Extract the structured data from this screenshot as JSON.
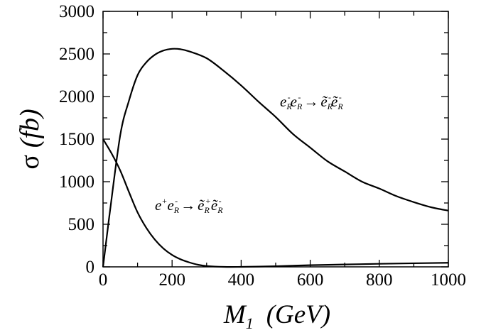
{
  "chart_data": {
    "type": "line",
    "xlabel": "M_1 (GeV)",
    "ylabel": "σ (fb)",
    "xlim": [
      0,
      1000
    ],
    "ylim": [
      0,
      3000
    ],
    "grid": false,
    "x_ticks": [
      0,
      200,
      400,
      600,
      800,
      1000
    ],
    "y_ticks": [
      0,
      500,
      1000,
      1500,
      2000,
      2500,
      3000
    ],
    "series": [
      {
        "name": "e⁻_R e⁻_R → ẽ⁻_R ẽ⁻_R",
        "x": [
          0,
          20,
          50,
          75,
          100,
          125,
          150,
          175,
          200,
          225,
          250,
          300,
          350,
          400,
          450,
          500,
          550,
          600,
          650,
          700,
          750,
          800,
          850,
          900,
          950,
          1000
        ],
        "y": [
          0,
          650,
          1550,
          1950,
          2250,
          2400,
          2490,
          2540,
          2560,
          2555,
          2530,
          2450,
          2300,
          2130,
          1940,
          1760,
          1560,
          1400,
          1240,
          1120,
          1000,
          920,
          830,
          760,
          700,
          660
        ]
      },
      {
        "name": "e⁺ e⁻_R → ẽ⁺_R ẽ⁻_R",
        "x": [
          0,
          25,
          50,
          75,
          100,
          125,
          150,
          175,
          200,
          225,
          250,
          275,
          300,
          350,
          400,
          450,
          500,
          550,
          600,
          700,
          800,
          900,
          1000
        ],
        "y": [
          1500,
          1330,
          1130,
          880,
          640,
          460,
          320,
          215,
          140,
          88,
          52,
          25,
          10,
          0,
          0,
          3,
          8,
          14,
          20,
          28,
          36,
          42,
          48
        ]
      }
    ],
    "annotations": [
      {
        "label": "e⁻_R e⁻_R → ẽ⁻_R ẽ⁻_R",
        "x": 520,
        "y": 1960
      },
      {
        "label": "e⁺ e⁻_R → ẽ⁺_R ẽ⁻_R",
        "x": 160,
        "y": 690
      }
    ]
  },
  "axes": {
    "y_title_symbol": "σ",
    "y_title_unit": "(fb)",
    "x_title_symbol": "M",
    "x_title_sub": "1",
    "x_title_unit": "(GeV)"
  },
  "annotations": {
    "upper": {
      "e1": "e",
      "s1": "R",
      "m1": "-",
      "e2": "e",
      "s2": "R",
      "m2": "-",
      "arrow": "→",
      "t1": "ẽ",
      "ts1": "R",
      "tm1": "-",
      "t2": "ẽ",
      "ts2": "R",
      "tm2": "-"
    },
    "lower": {
      "e1": "e",
      "p1": "+",
      "e2": "e",
      "s2": "R",
      "m2": "-",
      "arrow": "→",
      "t1": "ẽ",
      "ts1": "R",
      "tp1": "+",
      "t2": "ẽ",
      "ts2": "R",
      "tm2": "-"
    }
  }
}
